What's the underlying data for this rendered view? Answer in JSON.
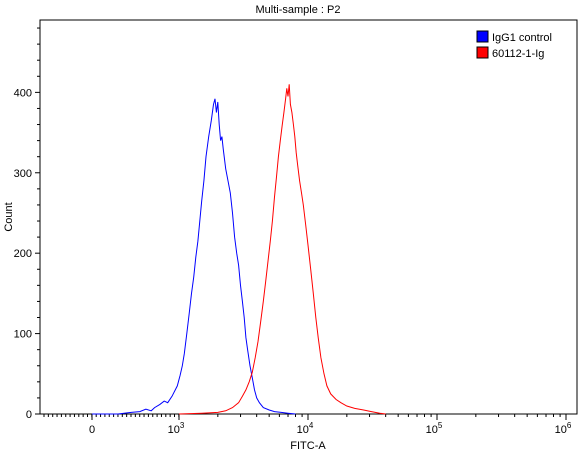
{
  "chart_data": {
    "type": "line",
    "title": "Multi-sample : P2",
    "xlabel": "FITC-A",
    "ylabel": "Count",
    "x_scale": "biexponential",
    "x_ticks": [
      {
        "value": 0,
        "label": "0",
        "sup": ""
      },
      {
        "value": 1000,
        "label": "10",
        "sup": "3"
      },
      {
        "value": 10000,
        "label": "10",
        "sup": "4"
      },
      {
        "value": 100000,
        "label": "10",
        "sup": "5"
      },
      {
        "value": 1000000,
        "label": "10",
        "sup": "6"
      }
    ],
    "y_ticks": [
      0,
      100,
      200,
      300,
      400
    ],
    "ylim": [
      0,
      490
    ],
    "legend_position": "top-right",
    "series": [
      {
        "name": "IgG1 control",
        "color": "#0000ff",
        "points": [
          [
            0,
            0
          ],
          [
            300,
            0
          ],
          [
            450,
            2
          ],
          [
            550,
            3
          ],
          [
            620,
            6
          ],
          [
            680,
            4
          ],
          [
            720,
            8
          ],
          [
            780,
            12
          ],
          [
            830,
            16
          ],
          [
            870,
            14
          ],
          [
            920,
            22
          ],
          [
            980,
            35
          ],
          [
            1020,
            48
          ],
          [
            1060,
            60
          ],
          [
            1100,
            75
          ],
          [
            1150,
            100
          ],
          [
            1200,
            125
          ],
          [
            1250,
            150
          ],
          [
            1300,
            170
          ],
          [
            1350,
            195
          ],
          [
            1400,
            215
          ],
          [
            1450,
            240
          ],
          [
            1500,
            265
          ],
          [
            1560,
            290
          ],
          [
            1620,
            320
          ],
          [
            1700,
            345
          ],
          [
            1780,
            365
          ],
          [
            1850,
            385
          ],
          [
            1900,
            392
          ],
          [
            1950,
            375
          ],
          [
            2000,
            388
          ],
          [
            2050,
            360
          ],
          [
            2100,
            340
          ],
          [
            2150,
            345
          ],
          [
            2200,
            330
          ],
          [
            2300,
            305
          ],
          [
            2400,
            290
          ],
          [
            2500,
            275
          ],
          [
            2600,
            250
          ],
          [
            2700,
            220
          ],
          [
            2800,
            200
          ],
          [
            2900,
            185
          ],
          [
            3000,
            160
          ],
          [
            3100,
            140
          ],
          [
            3200,
            120
          ],
          [
            3300,
            95
          ],
          [
            3400,
            80
          ],
          [
            3550,
            60
          ],
          [
            3700,
            45
          ],
          [
            3850,
            30
          ],
          [
            4000,
            20
          ],
          [
            4200,
            14
          ],
          [
            4500,
            8
          ],
          [
            5000,
            5
          ],
          [
            5500,
            3
          ],
          [
            6200,
            2
          ],
          [
            7000,
            1
          ],
          [
            8000,
            0
          ]
        ]
      },
      {
        "name": "60112-1-Ig",
        "color": "#ff0000",
        "points": [
          [
            1000,
            0
          ],
          [
            1500,
            1
          ],
          [
            2000,
            2
          ],
          [
            2300,
            4
          ],
          [
            2600,
            8
          ],
          [
            2900,
            14
          ],
          [
            3100,
            22
          ],
          [
            3300,
            30
          ],
          [
            3500,
            40
          ],
          [
            3700,
            52
          ],
          [
            3900,
            70
          ],
          [
            4100,
            90
          ],
          [
            4300,
            115
          ],
          [
            4500,
            140
          ],
          [
            4700,
            165
          ],
          [
            4900,
            190
          ],
          [
            5100,
            215
          ],
          [
            5300,
            240
          ],
          [
            5500,
            270
          ],
          [
            5700,
            295
          ],
          [
            5900,
            320
          ],
          [
            6100,
            340
          ],
          [
            6300,
            358
          ],
          [
            6500,
            375
          ],
          [
            6700,
            392
          ],
          [
            6850,
            405
          ],
          [
            7000,
            395
          ],
          [
            7150,
            410
          ],
          [
            7300,
            385
          ],
          [
            7500,
            375
          ],
          [
            7700,
            360
          ],
          [
            7900,
            345
          ],
          [
            8100,
            325
          ],
          [
            8300,
            310
          ],
          [
            8600,
            290
          ],
          [
            8900,
            275
          ],
          [
            9200,
            260
          ],
          [
            9600,
            235
          ],
          [
            10000,
            210
          ],
          [
            10500,
            180
          ],
          [
            11000,
            150
          ],
          [
            11500,
            120
          ],
          [
            12000,
            95
          ],
          [
            12600,
            70
          ],
          [
            13300,
            50
          ],
          [
            14000,
            35
          ],
          [
            15000,
            25
          ],
          [
            16500,
            18
          ],
          [
            18000,
            14
          ],
          [
            20000,
            10
          ],
          [
            23000,
            7
          ],
          [
            27000,
            5
          ],
          [
            31000,
            3
          ],
          [
            36000,
            1
          ],
          [
            40000,
            0
          ]
        ]
      }
    ]
  }
}
